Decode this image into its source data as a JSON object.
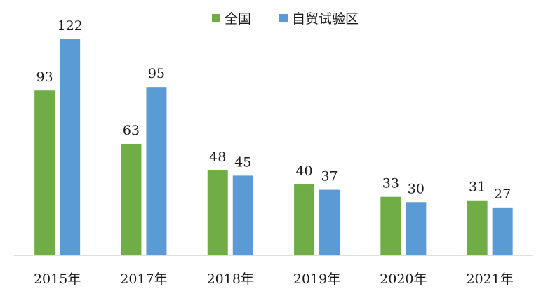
{
  "chart_data": {
    "type": "bar",
    "categories": [
      "2015年",
      "2017年",
      "2018年",
      "2019年",
      "2020年",
      "2021年"
    ],
    "series": [
      {
        "name": "全国",
        "color": "#70ad47",
        "values": [
          93,
          63,
          48,
          40,
          33,
          31
        ]
      },
      {
        "name": "自贸试验区",
        "color": "#5b9bd5",
        "values": [
          122,
          95,
          45,
          37,
          30,
          27
        ]
      }
    ],
    "ylim": [
      0,
      122
    ],
    "grid": false,
    "legend_position": "top-center",
    "data_labels": true
  }
}
